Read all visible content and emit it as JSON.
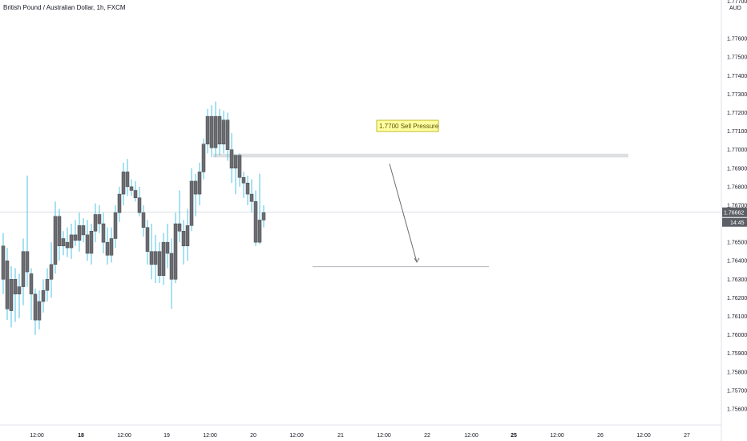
{
  "title": "British Pound / Australian Dollar, 1h, FXCM",
  "currency": "AUD",
  "chart_data": {
    "type": "candlestick",
    "symbol": "GBPAUD",
    "timeframe": "1h",
    "source": "FXCM",
    "price_axis": {
      "min": 1.7555,
      "max": 1.7772,
      "ticks": [
        "1.77600",
        "1.77500",
        "1.77400",
        "1.77300",
        "1.77200",
        "1.77100",
        "1.77000",
        "1.76900",
        "1.76800",
        "1.76700",
        "1.76500",
        "1.76400",
        "1.76300",
        "1.76200",
        "1.76100",
        "1.76000",
        "1.75900",
        "1.75800",
        "1.75700",
        "1.75600"
      ],
      "top_partial_label": "1.77700"
    },
    "time_axis": [
      {
        "label": "12:00",
        "bold": false
      },
      {
        "label": "18",
        "bold": true
      },
      {
        "label": "12:00",
        "bold": false
      },
      {
        "label": "19",
        "bold": false
      },
      {
        "label": "12:00",
        "bold": false
      },
      {
        "label": "20",
        "bold": false
      },
      {
        "label": "12:00",
        "bold": false
      },
      {
        "label": "21",
        "bold": false
      },
      {
        "label": "12:00",
        "bold": false
      },
      {
        "label": "22",
        "bold": false
      },
      {
        "label": "12:00",
        "bold": false
      },
      {
        "label": "25",
        "bold": true
      },
      {
        "label": "12:00",
        "bold": false
      },
      {
        "label": "26",
        "bold": false
      },
      {
        "label": "12:00",
        "bold": false
      },
      {
        "label": "27",
        "bold": false
      }
    ],
    "last_price": "1.76662",
    "countdown": "14:45",
    "candles": [
      [
        1.7648,
        1.7655,
        1.7622,
        1.763
      ],
      [
        1.764,
        1.7647,
        1.7608,
        1.7614
      ],
      [
        1.7613,
        1.7637,
        1.7604,
        1.763
      ],
      [
        1.763,
        1.7636,
        1.7607,
        1.7622
      ],
      [
        1.7622,
        1.7633,
        1.7609,
        1.7626
      ],
      [
        1.7626,
        1.7652,
        1.7616,
        1.7645
      ],
      [
        1.7645,
        1.7686,
        1.7626,
        1.7634
      ],
      [
        1.7633,
        1.7636,
        1.7608,
        1.7622
      ],
      [
        1.7622,
        1.7625,
        1.76,
        1.7608
      ],
      [
        1.7608,
        1.7624,
        1.7603,
        1.7618
      ],
      [
        1.7618,
        1.763,
        1.7612,
        1.7624
      ],
      [
        1.7624,
        1.7636,
        1.7618,
        1.763
      ],
      [
        1.763,
        1.765,
        1.762,
        1.7638
      ],
      [
        1.7638,
        1.7672,
        1.7633,
        1.7664
      ],
      [
        1.7664,
        1.7668,
        1.764,
        1.7648
      ],
      [
        1.7648,
        1.7656,
        1.7643,
        1.7652
      ],
      [
        1.765,
        1.7658,
        1.7642,
        1.7647
      ],
      [
        1.7647,
        1.766,
        1.7641,
        1.7654
      ],
      [
        1.7654,
        1.7662,
        1.7648,
        1.7651
      ],
      [
        1.7651,
        1.7666,
        1.7645,
        1.7659
      ],
      [
        1.7659,
        1.7663,
        1.765,
        1.7654
      ],
      [
        1.7654,
        1.7662,
        1.764,
        1.7644
      ],
      [
        1.7644,
        1.766,
        1.7638,
        1.7656
      ],
      [
        1.7656,
        1.7671,
        1.765,
        1.7665
      ],
      [
        1.7665,
        1.767,
        1.7655,
        1.766
      ],
      [
        1.766,
        1.7666,
        1.7644,
        1.765
      ],
      [
        1.765,
        1.7658,
        1.7638,
        1.7643
      ],
      [
        1.7643,
        1.7658,
        1.7639,
        1.7652
      ],
      [
        1.7652,
        1.767,
        1.7647,
        1.7666
      ],
      [
        1.7666,
        1.768,
        1.7661,
        1.7676
      ],
      [
        1.7676,
        1.7693,
        1.767,
        1.7688
      ],
      [
        1.7688,
        1.7695,
        1.7675,
        1.768
      ],
      [
        1.768,
        1.7684,
        1.7675,
        1.7678
      ],
      [
        1.7678,
        1.7683,
        1.7672,
        1.7674
      ],
      [
        1.7674,
        1.768,
        1.7664,
        1.7666
      ],
      [
        1.7666,
        1.767,
        1.7653,
        1.7658
      ],
      [
        1.7658,
        1.7662,
        1.7638,
        1.7645
      ],
      [
        1.7645,
        1.766,
        1.763,
        1.7638
      ],
      [
        1.7638,
        1.7654,
        1.7628,
        1.7645
      ],
      [
        1.7645,
        1.765,
        1.7628,
        1.7632
      ],
      [
        1.7632,
        1.7655,
        1.7627,
        1.765
      ],
      [
        1.765,
        1.766,
        1.7636,
        1.7644
      ],
      [
        1.7644,
        1.7652,
        1.7614,
        1.763
      ],
      [
        1.763,
        1.7666,
        1.7628,
        1.766
      ],
      [
        1.766,
        1.7678,
        1.765,
        1.7656
      ],
      [
        1.7656,
        1.7662,
        1.7638,
        1.7648
      ],
      [
        1.7648,
        1.7668,
        1.764,
        1.7659
      ],
      [
        1.7659,
        1.769,
        1.7656,
        1.7683
      ],
      [
        1.7683,
        1.7687,
        1.7664,
        1.7676
      ],
      [
        1.7676,
        1.7693,
        1.767,
        1.7688
      ],
      [
        1.7688,
        1.7706,
        1.7684,
        1.7703
      ],
      [
        1.7703,
        1.7722,
        1.7698,
        1.7718
      ],
      [
        1.7718,
        1.7724,
        1.7696,
        1.7701
      ],
      [
        1.7701,
        1.7726,
        1.7696,
        1.7718
      ],
      [
        1.7718,
        1.7722,
        1.7697,
        1.7703
      ],
      [
        1.7703,
        1.7721,
        1.7698,
        1.7716
      ],
      [
        1.7716,
        1.772,
        1.7694,
        1.77
      ],
      [
        1.77,
        1.7709,
        1.7682,
        1.769
      ],
      [
        1.769,
        1.7697,
        1.7676,
        1.7697
      ],
      [
        1.7697,
        1.7698,
        1.768,
        1.7685
      ],
      [
        1.7685,
        1.7688,
        1.7674,
        1.7682
      ],
      [
        1.7682,
        1.7686,
        1.767,
        1.7676
      ],
      [
        1.7676,
        1.7684,
        1.7666,
        1.7672
      ],
      [
        1.7672,
        1.7678,
        1.7648,
        1.765
      ],
      [
        1.765,
        1.7687,
        1.7649,
        1.7662
      ],
      [
        1.7662,
        1.767,
        1.7658,
        1.7666
      ]
    ],
    "zone": {
      "label": "1.7700 Sell Pressure",
      "top": 1.76978,
      "bottom": 1.76958
    },
    "target_line": {
      "price": 1.76368
    },
    "arrow": {
      "from_price": 1.76924,
      "to_price": 1.76393
    }
  }
}
